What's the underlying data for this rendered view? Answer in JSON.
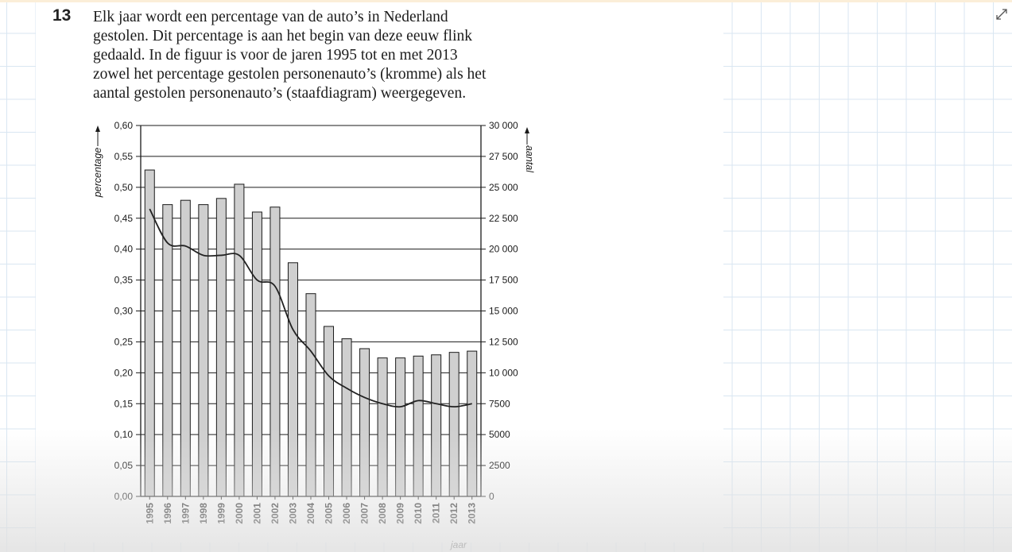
{
  "question": {
    "number": "13",
    "lines": [
      "Elk jaar wordt een percentage van de auto’s in Nederland",
      "gestolen. Dit percentage is aan het begin van deze eeuw flink",
      "gedaald. In de figuur is voor de jaren 1995 tot en met 2013",
      "zowel het percentage gestolen personenauto’s (kromme) als het",
      "aantal gestolen personenauto’s (staafdiagram) weergegeven."
    ]
  },
  "icons": {
    "expand": "expand-icon"
  },
  "colors": {
    "bar_fill": "#cfcfcf",
    "line": "#222222",
    "grid": "#1a1a1a"
  },
  "chart_data": {
    "type": "bar",
    "title": "",
    "xlabel": "jaar",
    "ylabel_left": "percentage",
    "ylabel_right": "aantal",
    "categories": [
      "1995",
      "1996",
      "1997",
      "1998",
      "1999",
      "2000",
      "2001",
      "2002",
      "2003",
      "2004",
      "2005",
      "2006",
      "2007",
      "2008",
      "2009",
      "2010",
      "2011",
      "2012",
      "2013"
    ],
    "ylim_left": [
      0,
      0.6
    ],
    "ylim_right": [
      0,
      30000
    ],
    "left_ticks": [
      "0,00",
      "0,05",
      "0,10",
      "0,15",
      "0,20",
      "0,25",
      "0,30",
      "0,35",
      "0,40",
      "0,45",
      "0,50",
      "0,55",
      "0,60"
    ],
    "right_ticks": [
      "0",
      "2500",
      "5000",
      "7500",
      "10 000",
      "12 500",
      "15 000",
      "17 500",
      "20 000",
      "22 500",
      "25 000",
      "27 500",
      "30 000"
    ],
    "grid": true,
    "series": [
      {
        "name": "aantal gestolen personenauto’s",
        "type": "bar",
        "axis": "right",
        "values": [
          26400,
          23600,
          23950,
          23600,
          24100,
          25250,
          23000,
          23400,
          18900,
          16400,
          13750,
          12750,
          11950,
          11200,
          11200,
          11350,
          11450,
          11650,
          11750
        ]
      },
      {
        "name": "percentage gestolen personenauto’s",
        "type": "line",
        "axis": "left",
        "values": [
          0.465,
          0.41,
          0.405,
          0.39,
          0.39,
          0.39,
          0.35,
          0.34,
          0.27,
          0.235,
          0.195,
          0.175,
          0.16,
          0.15,
          0.145,
          0.155,
          0.15,
          0.145,
          0.15
        ]
      }
    ]
  }
}
